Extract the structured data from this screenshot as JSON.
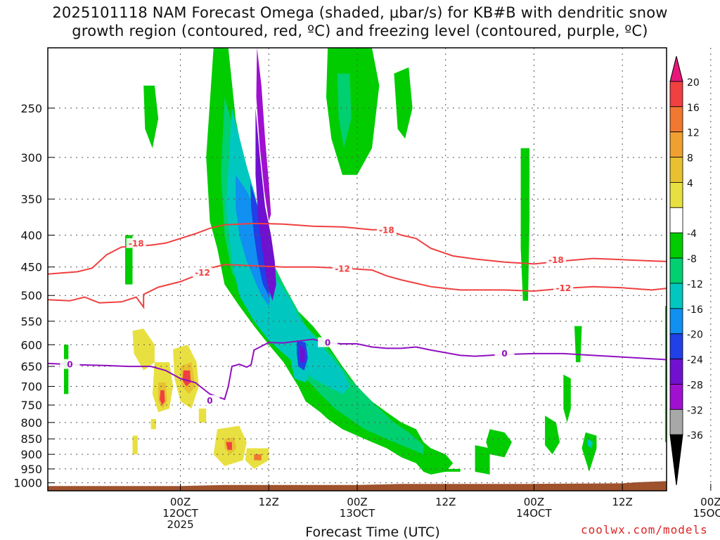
{
  "title_line1": "2025101118 NAM Forecast Omega (shaded, μbar/s) for KB#B with dendritic snow",
  "title_line2": "growth region (contoured, red, ºC) and freezing level (contoured, purple, ºC)",
  "xlabel": "Forecast Time (UTC)",
  "credit": "coolwx.com/models",
  "chart_data": {
    "type": "heatmap",
    "title": "2025101118 NAM Forecast Omega (shaded, μbar/s) for KB#B with dendritic snow growth region (contoured, red, ºC) and freezing level (contoured, purple, ºC)",
    "xlabel": "Forecast Time (UTC)",
    "ylabel": "",
    "x_range_hours": [
      -18,
      66
    ],
    "y_axis": {
      "scale": "log-pressure",
      "range_hPa": [
        1030,
        200
      ],
      "ticks": [
        250,
        300,
        350,
        400,
        450,
        500,
        550,
        600,
        650,
        700,
        750,
        800,
        850,
        900,
        950,
        1000
      ]
    },
    "x_ticks": [
      {
        "hour": 0,
        "label": [
          "00Z",
          "12OCT",
          "2025"
        ]
      },
      {
        "hour": 12,
        "label": [
          "12Z"
        ]
      },
      {
        "hour": 24,
        "label": [
          "00Z",
          "13OCT"
        ]
      },
      {
        "hour": 36,
        "label": [
          "12Z"
        ]
      },
      {
        "hour": 48,
        "label": [
          "00Z",
          "14OCT"
        ]
      },
      {
        "hour": 60,
        "label": [
          "12Z"
        ]
      },
      {
        "hour": 72,
        "label": [
          "00Z",
          "15OCT"
        ]
      }
    ],
    "grid": true,
    "colorbar": {
      "labels": [
        "20",
        "16",
        "12",
        "8",
        "4",
        "-4",
        "-8",
        "-12",
        "-16",
        "-20",
        "-24",
        "-28",
        "-32",
        "-36"
      ],
      "colors": [
        "#e8177a",
        "#f04040",
        "#f07830",
        "#f0a030",
        "#e8c030",
        "#e8e040",
        "#ffffff",
        "#00cc00",
        "#00d070",
        "#00c8c0",
        "#1090f0",
        "#2040e8",
        "#7010d0",
        "#a010d0",
        "#a8a8a8",
        "#000000"
      ]
    },
    "contours": [
      {
        "name": "-18",
        "color": "#f04040",
        "points": [
          [
            -18,
            462
          ],
          [
            -14,
            458
          ],
          [
            -12,
            452
          ],
          [
            -10,
            430
          ],
          [
            -8,
            418
          ],
          [
            -4,
            415
          ],
          [
            -2,
            412
          ],
          [
            0,
            405
          ],
          [
            2,
            398
          ],
          [
            4,
            390
          ],
          [
            6,
            385
          ],
          [
            10,
            383
          ],
          [
            14,
            384
          ],
          [
            18,
            387
          ],
          [
            22,
            388
          ],
          [
            26,
            392
          ],
          [
            28,
            392
          ],
          [
            30,
            400
          ],
          [
            32,
            405
          ],
          [
            34,
            420
          ],
          [
            37,
            432
          ],
          [
            40,
            437
          ],
          [
            44,
            442
          ],
          [
            48,
            445
          ],
          [
            52,
            440
          ],
          [
            56,
            436
          ],
          [
            60,
            438
          ],
          [
            64,
            440
          ],
          [
            66,
            441
          ]
        ]
      },
      {
        "name": "-12",
        "color": "#f04040",
        "points": [
          [
            -18,
            508
          ],
          [
            -15,
            510
          ],
          [
            -13,
            503
          ],
          [
            -11,
            514
          ],
          [
            -8,
            512
          ],
          [
            -6,
            503
          ],
          [
            -5,
            522
          ],
          [
            -5,
            498
          ],
          [
            -3,
            485
          ],
          [
            0,
            475
          ],
          [
            2,
            465
          ],
          [
            4,
            452
          ],
          [
            6,
            446
          ],
          [
            10,
            448
          ],
          [
            14,
            450
          ],
          [
            18,
            450
          ],
          [
            22,
            452
          ],
          [
            26,
            455
          ],
          [
            28,
            465
          ],
          [
            30,
            472
          ],
          [
            32,
            478
          ],
          [
            34,
            484
          ],
          [
            36,
            487
          ],
          [
            38,
            490
          ],
          [
            40,
            490
          ],
          [
            44,
            490
          ],
          [
            48,
            492
          ],
          [
            52,
            487
          ],
          [
            56,
            484
          ],
          [
            60,
            486
          ],
          [
            64,
            490
          ],
          [
            66,
            487
          ]
        ]
      },
      {
        "name": "0",
        "color": "#9010c0",
        "points": [
          [
            -18,
            643
          ],
          [
            -14,
            646
          ],
          [
            -10,
            648
          ],
          [
            -7,
            650
          ],
          [
            -4,
            650
          ],
          [
            -2,
            660
          ],
          [
            0,
            680
          ],
          [
            2,
            690
          ],
          [
            4,
            720
          ],
          [
            6,
            734
          ],
          [
            6.5,
            700
          ],
          [
            7,
            650
          ],
          [
            8,
            645
          ],
          [
            9,
            652
          ],
          [
            9.6,
            646
          ],
          [
            10,
            612
          ],
          [
            12,
            595
          ],
          [
            14,
            596
          ],
          [
            16,
            592
          ],
          [
            18,
            588
          ],
          [
            20,
            596
          ],
          [
            22,
            598
          ],
          [
            24,
            598
          ],
          [
            26,
            605
          ],
          [
            28,
            608
          ],
          [
            30,
            608
          ],
          [
            32,
            605
          ],
          [
            34,
            612
          ],
          [
            36,
            618
          ],
          [
            38,
            624
          ],
          [
            40,
            626
          ],
          [
            44,
            622
          ],
          [
            48,
            620
          ],
          [
            52,
            620
          ],
          [
            56,
            624
          ],
          [
            60,
            628
          ],
          [
            64,
            632
          ],
          [
            66,
            634
          ]
        ]
      }
    ],
    "contour_labels": [
      {
        "text": "-18",
        "hour": 28,
        "hPa": 393,
        "color": "#f04040"
      },
      {
        "text": "-18",
        "hour": 51,
        "hPa": 439,
        "color": "#f04040"
      },
      {
        "text": "-12",
        "hour": 3,
        "hPa": 460,
        "color": "#f04040"
      },
      {
        "text": "-12",
        "hour": 22,
        "hPa": 453,
        "color": "#f04040"
      },
      {
        "text": "-12",
        "hour": 52,
        "hPa": 487,
        "color": "#f04040"
      },
      {
        "text": "-18",
        "hour": -6,
        "hPa": 413,
        "color": "#f04040"
      },
      {
        "text": "0",
        "hour": -15,
        "hPa": 646,
        "color": "#9010c0"
      },
      {
        "text": "0",
        "hour": 4,
        "hPa": 738,
        "color": "#9010c0"
      },
      {
        "text": "0",
        "hour": 20,
        "hPa": 596,
        "color": "#9010c0"
      },
      {
        "text": "0",
        "hour": 44,
        "hPa": 620,
        "color": "#9010c0"
      }
    ]
  }
}
